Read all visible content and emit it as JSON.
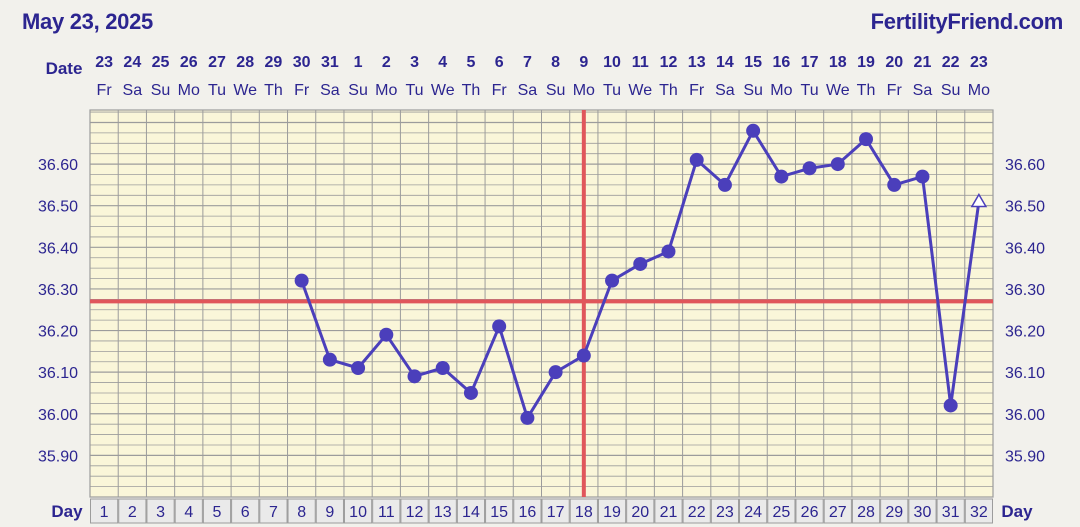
{
  "header": {
    "date": "May 23, 2025",
    "brand": "FertilityFriend.com"
  },
  "labels": {
    "date_row": "Date",
    "day_row": "Day"
  },
  "colors": {
    "background": "#f2f1ec",
    "plot_background": "#faf6d9",
    "grid": "#9c9c9c",
    "text": "#2c2590",
    "series": "#4b3fbb",
    "coverline": "#e0565b",
    "ovulation_line": "#e0565b"
  },
  "chart_data": {
    "type": "line",
    "title": "",
    "xlabel": "Day",
    "ylabel": "",
    "ylim": [
      35.8,
      36.73
    ],
    "yticks": [
      35.9,
      36.0,
      36.1,
      36.2,
      36.3,
      36.4,
      36.5,
      36.6
    ],
    "ytick_labels": [
      "35.90",
      "36.00",
      "36.10",
      "36.20",
      "36.30",
      "36.40",
      "36.50",
      "36.60"
    ],
    "grid": true,
    "cycle_days": [
      1,
      2,
      3,
      4,
      5,
      6,
      7,
      8,
      9,
      10,
      11,
      12,
      13,
      14,
      15,
      16,
      17,
      18,
      19,
      20,
      21,
      22,
      23,
      24,
      25,
      26,
      27,
      28,
      29,
      30,
      31,
      32
    ],
    "dates": [
      "23",
      "24",
      "25",
      "26",
      "27",
      "28",
      "29",
      "30",
      "31",
      "1",
      "2",
      "3",
      "4",
      "5",
      "6",
      "7",
      "8",
      "9",
      "10",
      "11",
      "12",
      "13",
      "14",
      "15",
      "16",
      "17",
      "18",
      "19",
      "20",
      "21",
      "22",
      "23"
    ],
    "weekdays": [
      "Fr",
      "Sa",
      "Su",
      "Mo",
      "Tu",
      "We",
      "Th",
      "Fr",
      "Sa",
      "Su",
      "Mo",
      "Tu",
      "We",
      "Th",
      "Fr",
      "Sa",
      "Su",
      "Mo",
      "Tu",
      "We",
      "Th",
      "Fr",
      "Sa",
      "Su",
      "Mo",
      "Tu",
      "We",
      "Th",
      "Fr",
      "Sa",
      "Su",
      "Mo"
    ],
    "series": [
      {
        "values": [
          null,
          null,
          null,
          null,
          null,
          null,
          null,
          36.32,
          36.13,
          36.11,
          36.19,
          36.09,
          36.11,
          36.05,
          36.21,
          35.99,
          36.1,
          36.14,
          36.32,
          36.36,
          36.39,
          36.61,
          36.55,
          36.68,
          36.57,
          36.59,
          36.6,
          36.66,
          36.55,
          36.57,
          36.02,
          36.51
        ],
        "hollow_points": [
          32
        ]
      }
    ],
    "coverline": 36.27,
    "ovulation_day": 18
  }
}
